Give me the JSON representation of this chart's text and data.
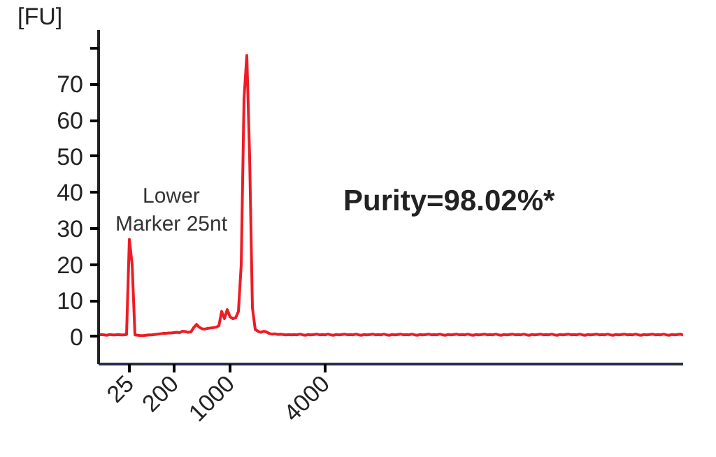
{
  "chart_data": {
    "type": "line",
    "ylabel": "[FU]",
    "categories": [
      null,
      null,
      null,
      null,
      null,
      null,
      null,
      null,
      null,
      null,
      null,
      "25",
      null,
      null,
      null,
      null,
      null,
      null,
      null,
      null,
      null,
      null,
      null,
      null,
      null,
      null,
      null,
      "200",
      null,
      null,
      null,
      null,
      null,
      null,
      null,
      null,
      null,
      null,
      null,
      null,
      null,
      null,
      null,
      null,
      null,
      null,
      null,
      "1000",
      null,
      null,
      null,
      null,
      null,
      null,
      null,
      null,
      null,
      null,
      null,
      null,
      null,
      null,
      null,
      null,
      null,
      null,
      null,
      null,
      null,
      null,
      null,
      null,
      null,
      null,
      null,
      null,
      null,
      null,
      null,
      null,
      null,
      "4000",
      null,
      null,
      null,
      null,
      null,
      null,
      null,
      null,
      null,
      null,
      null,
      null,
      null,
      null,
      null,
      null,
      null,
      null,
      null,
      null,
      null,
      null,
      null,
      null,
      null,
      null,
      null,
      null,
      null,
      null,
      null,
      null,
      null,
      null,
      null,
      null,
      null,
      null,
      null,
      null,
      null,
      null,
      null,
      null,
      null,
      null,
      null,
      null,
      null,
      null,
      null,
      null,
      null,
      null,
      null,
      null,
      null,
      null,
      null,
      null,
      null,
      null,
      null,
      null,
      null,
      null,
      null,
      null,
      null,
      null,
      null,
      null,
      null,
      null,
      null,
      null,
      null,
      null,
      null,
      null,
      null,
      null,
      null,
      null,
      null,
      null,
      null,
      null,
      null,
      null,
      null,
      null,
      null,
      null,
      null,
      null,
      null,
      null,
      null,
      null,
      null,
      null,
      null,
      null,
      null,
      null,
      null,
      null,
      null,
      null,
      null,
      null,
      null,
      null,
      null,
      null,
      null,
      null,
      null,
      null,
      null,
      null,
      null,
      null,
      null,
      null,
      null,
      null
    ],
    "series": [
      {
        "color": "#ee1c25",
        "values": [
          0.5,
          0.6,
          0.5,
          0.4,
          0.6,
          0.5,
          0.5,
          0.6,
          0.5,
          0.5,
          0.6,
          27,
          20,
          0.5,
          0.4,
          0.3,
          0.3,
          0.4,
          0.5,
          0.5,
          0.6,
          0.7,
          0.8,
          0.9,
          0.9,
          1.0,
          1.0,
          1.1,
          1.2,
          1.1,
          1.5,
          1.4,
          1.2,
          1.3,
          2.5,
          3.4,
          2.6,
          2.2,
          2.1,
          2.3,
          2.4,
          2.5,
          2.6,
          3,
          7,
          5,
          7.5,
          5.5,
          5,
          5.2,
          7,
          20,
          66,
          78,
          50,
          8,
          2,
          1.5,
          1.2,
          1.5,
          1.3,
          0.9,
          0.7,
          0.8,
          0.6,
          0.7,
          0.6,
          0.5,
          0.6,
          0.5,
          0.6,
          0.5,
          0.7,
          0.5,
          0.4,
          0.6,
          0.5,
          0.6,
          0.7,
          0.5,
          0.6,
          0.5,
          0.7,
          0.5,
          0.4,
          0.6,
          0.5,
          0.6,
          0.7,
          0.5,
          0.6,
          0.5,
          0.7,
          0.5,
          0.4,
          0.6,
          0.5,
          0.6,
          0.7,
          0.5,
          0.6,
          0.5,
          0.7,
          0.5,
          0.4,
          0.6,
          0.5,
          0.6,
          0.7,
          0.5,
          0.6,
          0.5,
          0.7,
          0.5,
          0.4,
          0.6,
          0.5,
          0.6,
          0.7,
          0.5,
          0.6,
          0.5,
          0.7,
          0.5,
          0.4,
          0.6,
          0.5,
          0.6,
          0.7,
          0.5,
          0.6,
          0.5,
          0.7,
          0.5,
          0.4,
          0.6,
          0.5,
          0.6,
          0.7,
          0.5,
          0.6,
          0.5,
          0.7,
          0.5,
          0.4,
          0.6,
          0.5,
          0.6,
          0.7,
          0.5,
          0.6,
          0.5,
          0.7,
          0.5,
          0.4,
          0.6,
          0.5,
          0.6,
          0.7,
          0.5,
          0.6,
          0.5,
          0.7,
          0.5,
          0.4,
          0.6,
          0.5,
          0.6,
          0.7,
          0.5,
          0.6,
          0.5,
          0.7,
          0.5,
          0.4,
          0.6,
          0.5,
          0.6,
          0.7,
          0.5,
          0.6,
          0.5,
          0.7,
          0.5,
          0.4,
          0.6,
          0.5,
          0.6,
          0.7,
          0.5,
          0.6,
          0.5,
          0.7,
          0.5,
          0.4,
          0.6,
          0.5,
          0.6,
          0.7,
          0.5,
          0.6,
          0.5,
          0.7,
          0.5,
          0.4,
          0.6,
          0.5,
          0.6,
          0.7,
          0.4
        ]
      }
    ],
    "ylim": [
      -7.6,
      85
    ],
    "yticks": [
      0,
      10,
      20,
      30,
      40,
      50,
      60,
      70,
      {
        "value": 80,
        "label": null
      }
    ],
    "grid": false,
    "marker": "none",
    "line_style": "solid",
    "annotations": [
      {
        "text": "Lower\nMarker 25nt",
        "x": "25",
        "y": 27
      },
      "Purity=98.02%*"
    ]
  }
}
